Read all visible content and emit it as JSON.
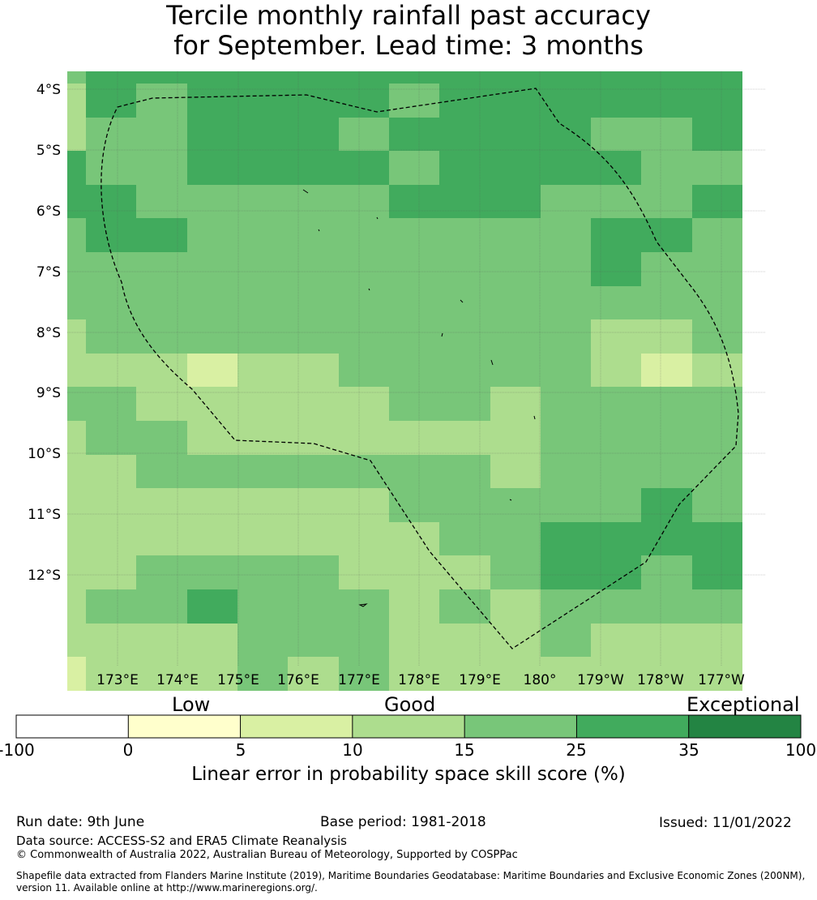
{
  "title": {
    "line1": "Tercile monthly rainfall past accuracy",
    "line2": "for September. Lead time: 3 months"
  },
  "map": {
    "lat_labels": [
      "4°S",
      "5°S",
      "6°S",
      "7°S",
      "8°S",
      "9°S",
      "10°S",
      "11°S",
      "12°S"
    ],
    "lon_labels": [
      "173°E",
      "174°E",
      "175°E",
      "176°E",
      "177°E",
      "178°E",
      "179°E",
      "180°",
      "179°W",
      "178°W",
      "177°W"
    ],
    "grid_values": [
      [
        15,
        25,
        25,
        25,
        25,
        25,
        25,
        25,
        25,
        25,
        25,
        25,
        25,
        25
      ],
      [
        10,
        25,
        15,
        25,
        25,
        25,
        25,
        15,
        25,
        25,
        25,
        25,
        25,
        25
      ],
      [
        10,
        15,
        15,
        25,
        25,
        25,
        15,
        25,
        25,
        25,
        25,
        15,
        15,
        25
      ],
      [
        25,
        15,
        15,
        25,
        25,
        25,
        25,
        15,
        25,
        25,
        25,
        25,
        15,
        15
      ],
      [
        25,
        25,
        15,
        15,
        15,
        15,
        15,
        25,
        25,
        25,
        15,
        15,
        15,
        25
      ],
      [
        15,
        25,
        25,
        15,
        15,
        15,
        15,
        15,
        15,
        15,
        15,
        25,
        25,
        15
      ],
      [
        15,
        15,
        15,
        15,
        15,
        15,
        15,
        15,
        15,
        15,
        15,
        25,
        15,
        15
      ],
      [
        15,
        15,
        15,
        15,
        15,
        15,
        15,
        15,
        15,
        15,
        15,
        15,
        15,
        15
      ],
      [
        10,
        15,
        15,
        15,
        15,
        15,
        15,
        15,
        15,
        15,
        15,
        10,
        10,
        15
      ],
      [
        10,
        10,
        10,
        5,
        10,
        10,
        15,
        15,
        15,
        15,
        15,
        10,
        5,
        10
      ],
      [
        15,
        15,
        10,
        10,
        10,
        10,
        10,
        15,
        15,
        10,
        15,
        15,
        15,
        15
      ],
      [
        10,
        15,
        15,
        10,
        10,
        10,
        10,
        10,
        10,
        10,
        15,
        15,
        15,
        15
      ],
      [
        10,
        10,
        15,
        15,
        15,
        15,
        15,
        15,
        15,
        10,
        15,
        15,
        15,
        15
      ],
      [
        10,
        10,
        10,
        10,
        10,
        10,
        10,
        15,
        15,
        15,
        15,
        15,
        25,
        15
      ],
      [
        10,
        10,
        10,
        10,
        10,
        10,
        10,
        10,
        15,
        15,
        25,
        25,
        25,
        25
      ],
      [
        10,
        10,
        15,
        15,
        15,
        15,
        10,
        10,
        10,
        15,
        25,
        25,
        15,
        25
      ],
      [
        10,
        15,
        15,
        25,
        15,
        15,
        15,
        10,
        15,
        10,
        15,
        15,
        15,
        15
      ],
      [
        10,
        10,
        10,
        10,
        15,
        15,
        15,
        10,
        10,
        10,
        15,
        10,
        10,
        10
      ],
      [
        5,
        10,
        10,
        10,
        15,
        10,
        15,
        10,
        10,
        10,
        10,
        10,
        10,
        10
      ]
    ]
  },
  "colorbar": {
    "categories": [
      {
        "label": "Low"
      },
      {
        "label": "Good"
      },
      {
        "label": "Exceptional"
      }
    ],
    "segments": [
      {
        "from": -100,
        "to": 0,
        "color": "#ffffff"
      },
      {
        "from": 0,
        "to": 5,
        "color": "#ffffcc"
      },
      {
        "from": 5,
        "to": 10,
        "color": "#d9f0a3"
      },
      {
        "from": 10,
        "to": 15,
        "color": "#addd8e"
      },
      {
        "from": 15,
        "to": 25,
        "color": "#78c679"
      },
      {
        "from": 25,
        "to": 35,
        "color": "#41ab5d"
      },
      {
        "from": 35,
        "to": 100,
        "color": "#238443"
      }
    ],
    "ticks": [
      "-100",
      "0",
      "5",
      "10",
      "15",
      "25",
      "35",
      "100"
    ],
    "label": "Linear error in probability space skill score (%)"
  },
  "footer": {
    "run_date": "Run date: 9th June",
    "base_period": "Base period: 1981-2018",
    "issued": "Issued: 11/01/2022",
    "data_source": "Data source: ACCESS-S2 and ERA5 Climate Reanalysis",
    "copyright": "© Commonwealth of Australia 2022, Australian Bureau of Meteorology, Supported by COSPPac",
    "shapefile_line1": "Shapefile data extracted from Flanders Marine Institute (2019), Maritime Boundaries Geodatabase: Maritime Boundaries and Exclusive Economic Zones (200NM),",
    "shapefile_line2": "version 11. Available online at http://www.marineregions.org/."
  }
}
